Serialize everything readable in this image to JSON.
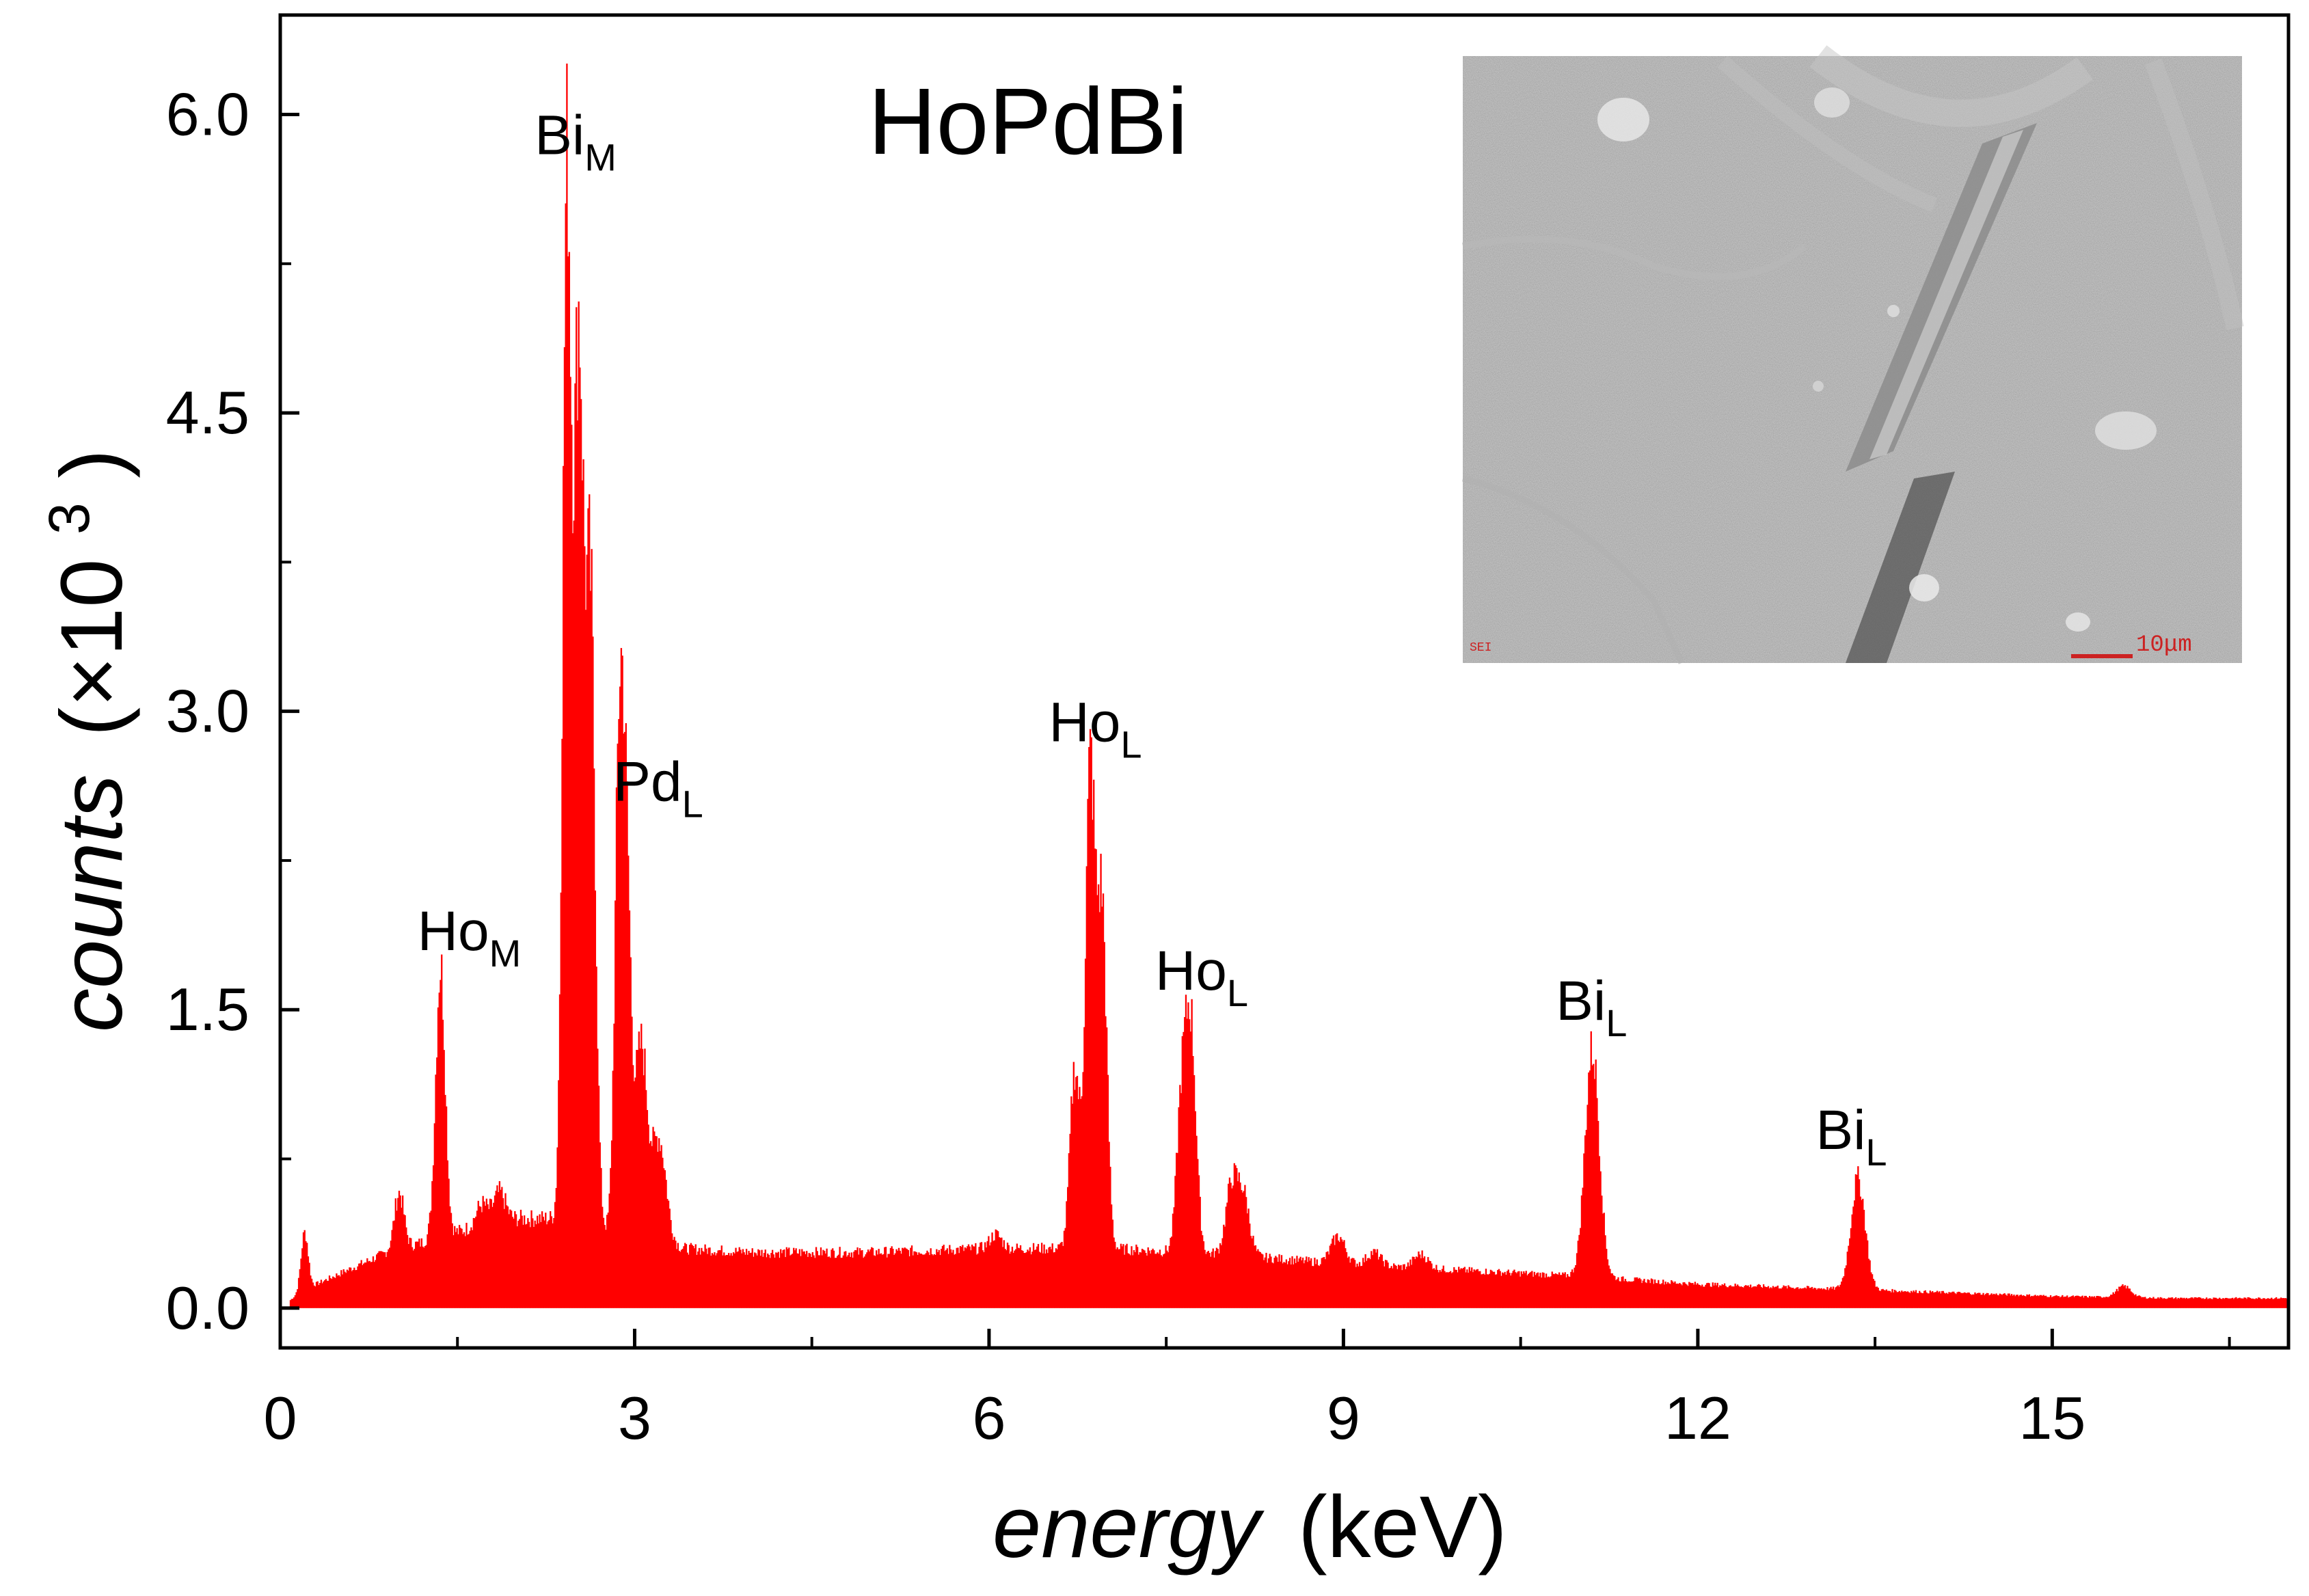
{
  "chart_data": {
    "type": "bar",
    "title": "HoPdBi",
    "xlabel_italic": "energy",
    "xlabel_unit": "(keV)",
    "ylabel_italic": "counts",
    "ylabel_unit_prefix": "(×10",
    "ylabel_unit_exp": "3",
    "ylabel_unit_suffix": ")",
    "xlim": [
      0,
      17
    ],
    "ylim": [
      -0.2,
      6.5
    ],
    "x_ticks": [
      0,
      3,
      6,
      9,
      12,
      15
    ],
    "x_tick_labels": [
      "0",
      "3",
      "6",
      "9",
      "12",
      "15"
    ],
    "y_ticks": [
      0.0,
      1.5,
      3.0,
      4.5,
      6.0
    ],
    "y_tick_labels": [
      "0.0",
      "1.5",
      "3.0",
      "4.5",
      "6.0"
    ],
    "color": "#ff0000",
    "background_level": [
      [
        0.1,
        0.05
      ],
      [
        0.3,
        0.12
      ],
      [
        0.6,
        0.2
      ],
      [
        0.9,
        0.28
      ],
      [
        1.2,
        0.33
      ],
      [
        1.6,
        0.4
      ],
      [
        2.0,
        0.45
      ],
      [
        2.3,
        0.45
      ],
      [
        2.7,
        0.4
      ],
      [
        3.0,
        0.35
      ],
      [
        3.4,
        0.3
      ],
      [
        4.0,
        0.28
      ],
      [
        5.0,
        0.28
      ],
      [
        6.0,
        0.3
      ],
      [
        7.0,
        0.3
      ],
      [
        8.0,
        0.27
      ],
      [
        9.0,
        0.22
      ],
      [
        10.0,
        0.19
      ],
      [
        11.0,
        0.16
      ],
      [
        12.0,
        0.12
      ],
      [
        13.0,
        0.1
      ],
      [
        14.0,
        0.08
      ],
      [
        15.0,
        0.06
      ],
      [
        16.0,
        0.05
      ],
      [
        17.0,
        0.05
      ]
    ],
    "peaks": [
      {
        "x": 0.2,
        "y": 0.38,
        "w": 0.03
      },
      {
        "x": 1.0,
        "y": 0.58,
        "w": 0.04
      },
      {
        "x": 1.35,
        "y": 1.72,
        "w": 0.04
      },
      {
        "x": 1.7,
        "y": 0.52,
        "w": 0.05
      },
      {
        "x": 1.85,
        "y": 0.58,
        "w": 0.05
      },
      {
        "x": 2.42,
        "y": 5.6,
        "w": 0.035
      },
      {
        "x": 2.52,
        "y": 4.8,
        "w": 0.04
      },
      {
        "x": 2.62,
        "y": 3.5,
        "w": 0.04
      },
      {
        "x": 2.86,
        "y": 2.45,
        "w": 0.035
      },
      {
        "x": 2.92,
        "y": 2.25,
        "w": 0.04
      },
      {
        "x": 3.05,
        "y": 1.3,
        "w": 0.05
      },
      {
        "x": 3.2,
        "y": 0.85,
        "w": 0.06
      },
      {
        "x": 6.05,
        "y": 0.37,
        "w": 0.05
      },
      {
        "x": 6.72,
        "y": 1.2,
        "w": 0.04
      },
      {
        "x": 6.85,
        "y": 2.7,
        "w": 0.04
      },
      {
        "x": 6.95,
        "y": 2.0,
        "w": 0.04
      },
      {
        "x": 7.7,
        "y": 1.42,
        "w": 0.045
      },
      {
        "x": 7.62,
        "y": 0.95,
        "w": 0.04
      },
      {
        "x": 8.05,
        "y": 0.62,
        "w": 0.05
      },
      {
        "x": 8.15,
        "y": 0.55,
        "w": 0.05
      },
      {
        "x": 8.95,
        "y": 0.36,
        "w": 0.06
      },
      {
        "x": 9.25,
        "y": 0.28,
        "w": 0.06
      },
      {
        "x": 9.65,
        "y": 0.27,
        "w": 0.06
      },
      {
        "x": 11.1,
        "y": 1.3,
        "w": 0.06
      },
      {
        "x": 13.35,
        "y": 0.65,
        "w": 0.06
      },
      {
        "x": 15.6,
        "y": 0.11,
        "w": 0.06
      }
    ],
    "annotations": [
      {
        "main": "Ho",
        "sub": "M",
        "x": 1.6,
        "y": 1.8
      },
      {
        "main": "Bi",
        "sub": "M",
        "x": 2.5,
        "y": 5.8
      },
      {
        "main": "Pd",
        "sub": "L",
        "x": 3.2,
        "y": 2.55
      },
      {
        "main": "Ho",
        "sub": "L",
        "x": 6.9,
        "y": 2.85
      },
      {
        "main": "Ho",
        "sub": "L",
        "x": 7.8,
        "y": 1.6
      },
      {
        "main": "Bi",
        "sub": "L",
        "x": 11.1,
        "y": 1.45
      },
      {
        "main": "Bi",
        "sub": "L",
        "x": 13.3,
        "y": 0.8
      }
    ]
  },
  "inset": {
    "scale_label": "10μm",
    "corner_label": "SEI"
  }
}
